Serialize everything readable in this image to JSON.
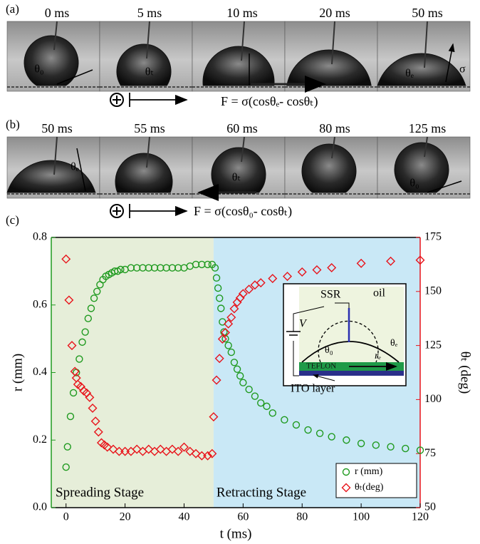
{
  "panels": {
    "a": {
      "label": "(a)",
      "times": [
        "0 ms",
        "5 ms",
        "10 ms",
        "20 ms",
        "50 ms"
      ],
      "angle_labels": [
        "θ₀",
        "θₜ",
        "θₑ",
        "σ"
      ],
      "force": "F = σ(cosθₑ- cosθₜ)"
    },
    "b": {
      "label": "(b)",
      "times": [
        "50 ms",
        "55 ms",
        "60 ms",
        "80 ms",
        "125 ms"
      ],
      "angle_labels": [
        "θₑ",
        "θₜ",
        "θ₀"
      ],
      "force": "F = σ(cosθ₀- cosθₜ)"
    }
  },
  "inset": {
    "ssr": "SSR",
    "oil": "oil",
    "v": "V",
    "theta0": "θ₀",
    "re": "rₑ",
    "thetae": "θₑ",
    "teflon": "TEFLON",
    "ito": "ITO layer"
  },
  "chart_data": {
    "type": "scatter",
    "panel_label": "(c)",
    "xlabel": "t (ms)",
    "ylabel": "r (mm)",
    "y2label": "θₜ (deg)",
    "xlim": [
      -5,
      120
    ],
    "xticks": [
      0,
      20,
      40,
      60,
      80,
      100,
      120
    ],
    "ylim": [
      0,
      0.8
    ],
    "yticks": [
      {
        "value": 0,
        "label": "0.0"
      },
      0.2,
      0.4,
      0.6,
      0.8
    ],
    "y2lim": [
      50,
      175
    ],
    "y2ticks": [
      50,
      75,
      100,
      125,
      150,
      175
    ],
    "y_axis_color": "#1f9a1f",
    "y2_axis_color": "#e8141b",
    "regions": [
      {
        "from": -5,
        "to": 50,
        "color": "#e6eed9",
        "label": "Spreading Stage"
      },
      {
        "from": 50,
        "to": 120,
        "color": "#c9e8f6",
        "label": "Retracting Stage"
      }
    ],
    "legend": "lower right",
    "series": [
      {
        "name": "r (mm)",
        "color": "#1f9a1f",
        "marker": "circle",
        "x": [
          0,
          0.5,
          1.5,
          2.5,
          3.5,
          4.5,
          5.5,
          6.5,
          7.5,
          8.5,
          9.5,
          10.5,
          11.5,
          12.5,
          13.5,
          14.5,
          15.5,
          16.5,
          17.5,
          18.5,
          20,
          22,
          24,
          26,
          28,
          30,
          32,
          34,
          36,
          38,
          40,
          42,
          44,
          46,
          48,
          49.5,
          50.5,
          51,
          51.5,
          52,
          52.5,
          53,
          53.5,
          54,
          55,
          56,
          57,
          58,
          59,
          60,
          62,
          64,
          66,
          68,
          70,
          74,
          78,
          82,
          86,
          90,
          95,
          100,
          105,
          110,
          115,
          120
        ],
        "values": [
          0.12,
          0.18,
          0.27,
          0.34,
          0.4,
          0.44,
          0.49,
          0.52,
          0.56,
          0.59,
          0.62,
          0.64,
          0.66,
          0.675,
          0.685,
          0.69,
          0.695,
          0.7,
          0.7,
          0.705,
          0.705,
          0.71,
          0.71,
          0.71,
          0.71,
          0.71,
          0.71,
          0.71,
          0.71,
          0.71,
          0.71,
          0.715,
          0.72,
          0.72,
          0.72,
          0.72,
          0.71,
          0.68,
          0.65,
          0.62,
          0.59,
          0.55,
          0.52,
          0.5,
          0.48,
          0.46,
          0.43,
          0.41,
          0.39,
          0.37,
          0.35,
          0.33,
          0.31,
          0.3,
          0.28,
          0.26,
          0.245,
          0.23,
          0.22,
          0.21,
          0.2,
          0.19,
          0.185,
          0.18,
          0.175,
          0.17
        ]
      },
      {
        "name": "θₜ(deg)",
        "color": "#e8141b",
        "marker": "diamond",
        "axis": "y2",
        "x": [
          0,
          1,
          2,
          3,
          3.5,
          4,
          5,
          6,
          7,
          8,
          9,
          10,
          11,
          12,
          13,
          14,
          16,
          18,
          20,
          22,
          24,
          26,
          28,
          30,
          32,
          34,
          36,
          38,
          40,
          42,
          44,
          46,
          48,
          49.5,
          50,
          51,
          52,
          53,
          54,
          55,
          56,
          57,
          58,
          59,
          60,
          62,
          64,
          66,
          70,
          75,
          80,
          85,
          90,
          100,
          110,
          120
        ],
        "values": [
          165,
          146,
          125,
          113,
          110,
          107,
          106,
          104,
          103,
          101,
          96,
          90,
          85,
          80,
          79,
          78,
          77,
          76,
          76,
          76,
          77,
          76,
          77,
          76,
          77,
          76,
          77,
          76,
          78,
          76,
          75,
          74,
          74,
          75,
          92,
          109,
          119,
          128,
          131,
          135,
          138,
          142,
          145,
          147,
          149,
          151,
          153,
          154,
          156,
          157,
          159,
          160,
          161,
          163,
          164,
          164.5
        ]
      }
    ]
  }
}
